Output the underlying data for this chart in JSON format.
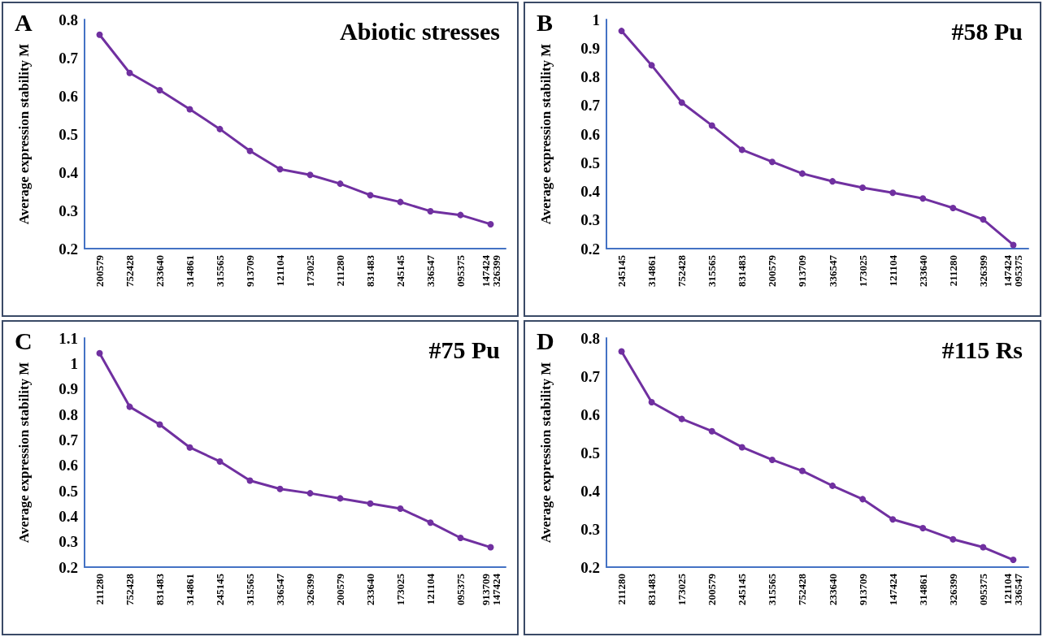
{
  "chart_data": [
    {
      "type": "line",
      "title": "Abiotic stresses",
      "annotations": [
        "A"
      ],
      "ylabel": "Average expression stability M",
      "categories": [
        "200579",
        "752428",
        "233640",
        "314861",
        "315565",
        "913709",
        "121104",
        "173025",
        "211280",
        "831483",
        "245145",
        "336547",
        "095375",
        "147424\n326399"
      ],
      "series": [
        {
          "color": "#7030a0",
          "values": [
            0.76,
            0.66,
            0.615,
            0.565,
            0.513,
            0.456,
            0.408,
            0.393,
            0.37,
            0.34,
            0.322,
            0.298,
            0.288,
            0.264
          ]
        }
      ],
      "ylim": [
        0.2,
        0.8
      ],
      "yticks": [
        0.2,
        0.3,
        0.4,
        0.5,
        0.6,
        0.7,
        0.8
      ],
      "grid": false,
      "marker": "circle",
      "line_style": "solid"
    },
    {
      "type": "line",
      "title": "#58 Pu",
      "annotations": [
        "B"
      ],
      "ylabel": "Average expression stability M",
      "categories": [
        "245145",
        "314861",
        "752428",
        "315565",
        "831483",
        "200579",
        "913709",
        "336547",
        "173025",
        "121104",
        "233640",
        "211280",
        "326399",
        "147424\n095375"
      ],
      "series": [
        {
          "color": "#7030a0",
          "values": [
            0.96,
            0.84,
            0.71,
            0.63,
            0.545,
            0.503,
            0.462,
            0.435,
            0.413,
            0.395,
            0.375,
            0.342,
            0.302,
            0.213
          ]
        }
      ],
      "ylim": [
        0.2,
        1
      ],
      "yticks": [
        0.2,
        0.3,
        0.4,
        0.5,
        0.6,
        0.7,
        0.8,
        0.9,
        1
      ],
      "grid": false,
      "marker": "circle",
      "line_style": "solid"
    },
    {
      "type": "line",
      "title": "#75 Pu",
      "annotations": [
        "C"
      ],
      "ylabel": "Average expression stability M",
      "categories": [
        "211280",
        "752428",
        "831483",
        "314861",
        "245145",
        "315565",
        "336547",
        "326399",
        "200579",
        "233640",
        "173025",
        "121104",
        "095375",
        "913709\n147424"
      ],
      "series": [
        {
          "color": "#7030a0",
          "values": [
            1.04,
            0.83,
            0.76,
            0.67,
            0.615,
            0.54,
            0.507,
            0.49,
            0.47,
            0.45,
            0.43,
            0.375,
            0.315,
            0.278
          ]
        }
      ],
      "ylim": [
        0.2,
        1.1
      ],
      "yticks": [
        0.2,
        0.3,
        0.4,
        0.5,
        0.6,
        0.7,
        0.8,
        0.9,
        1,
        1.1
      ],
      "grid": false,
      "marker": "circle",
      "line_style": "solid"
    },
    {
      "type": "line",
      "title": "#115 Rs",
      "annotations": [
        "D"
      ],
      "ylabel": "Average expression stability M",
      "categories": [
        "211280",
        "831483",
        "173025",
        "200579",
        "245145",
        "315565",
        "752428",
        "233640",
        "913709",
        "147424",
        "314861",
        "326399",
        "095375",
        "121104\n336547"
      ],
      "series": [
        {
          "color": "#7030a0",
          "values": [
            0.765,
            0.632,
            0.588,
            0.556,
            0.514,
            0.481,
            0.452,
            0.413,
            0.378,
            0.325,
            0.302,
            0.273,
            0.252,
            0.219
          ]
        }
      ],
      "ylim": [
        0.2,
        0.8
      ],
      "yticks": [
        0.2,
        0.3,
        0.4,
        0.5,
        0.6,
        0.7,
        0.8
      ],
      "grid": false,
      "marker": "circle",
      "line_style": "solid"
    }
  ]
}
